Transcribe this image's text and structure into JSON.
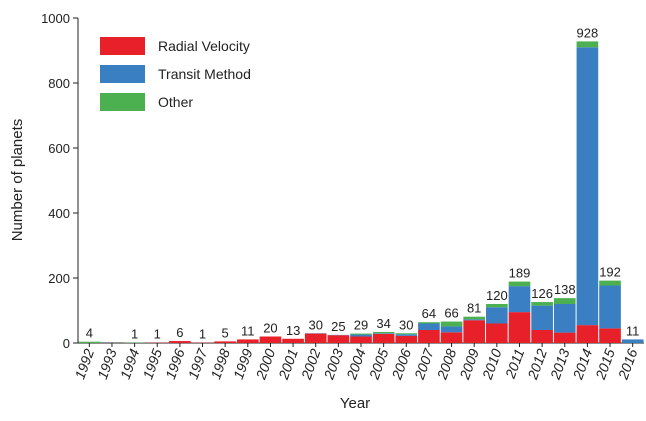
{
  "chart_data": {
    "type": "stacked-bar",
    "xlabel": "Year",
    "ylabel": "Number of planets",
    "categories": [
      "1992",
      "1993",
      "1994",
      "1995",
      "1996",
      "1997",
      "1998",
      "1999",
      "2000",
      "2001",
      "2002",
      "2003",
      "2004",
      "2005",
      "2006",
      "2007",
      "2008",
      "2009",
      "2010",
      "2011",
      "2012",
      "2013",
      "2014",
      "2015",
      "2016"
    ],
    "series": [
      {
        "name": "Radial Velocity",
        "color": "#e8202a",
        "values": [
          0,
          0,
          0,
          1,
          6,
          1,
          5,
          11,
          20,
          13,
          29,
          24,
          20,
          28,
          22,
          40,
          33,
          70,
          60,
          95,
          40,
          32,
          55,
          45,
          0
        ]
      },
      {
        "name": "Transit Method",
        "color": "#3a7fc1",
        "values": [
          0,
          0,
          0,
          0,
          0,
          0,
          0,
          0,
          0,
          0,
          1,
          1,
          6,
          2,
          5,
          20,
          18,
          3,
          50,
          80,
          75,
          88,
          855,
          132,
          11
        ]
      },
      {
        "name": "Other",
        "color": "#4caf50",
        "values": [
          4,
          0,
          1,
          0,
          0,
          0,
          0,
          0,
          0,
          0,
          0,
          0,
          3,
          4,
          3,
          4,
          15,
          8,
          10,
          14,
          11,
          18,
          18,
          15,
          0
        ]
      }
    ],
    "totals": [
      4,
      null,
      1,
      1,
      6,
      1,
      5,
      11,
      20,
      13,
      30,
      25,
      29,
      34,
      30,
      64,
      66,
      81,
      120,
      189,
      126,
      138,
      928,
      192,
      11
    ],
    "ylim": [
      0,
      1000
    ],
    "yticks": [
      0,
      200,
      400,
      600,
      800,
      1000
    ],
    "legend": "upper-left"
  }
}
